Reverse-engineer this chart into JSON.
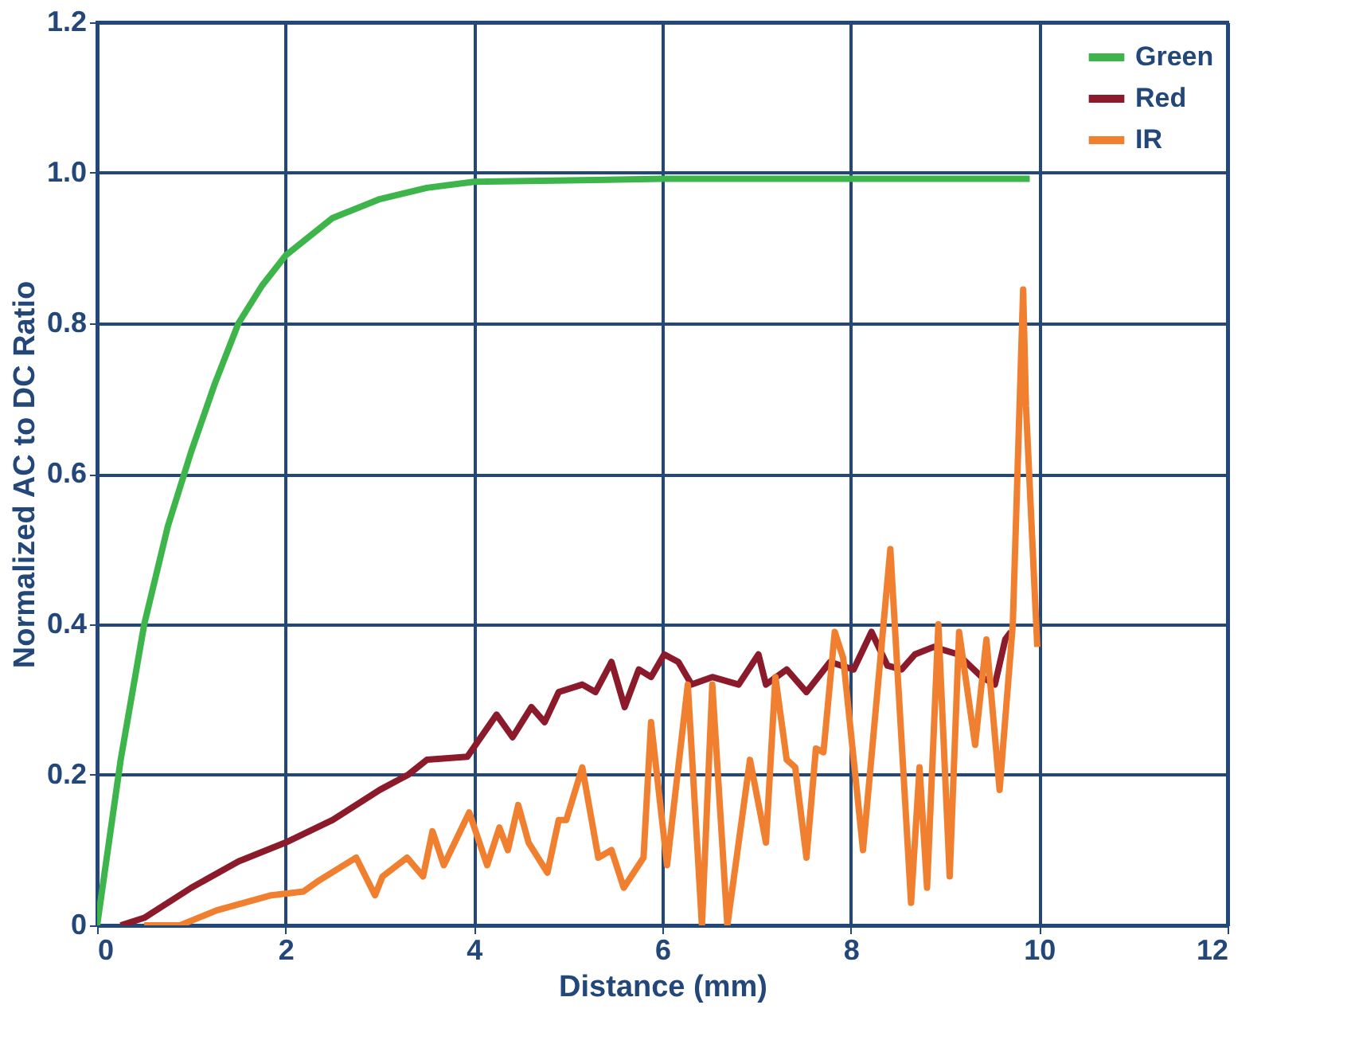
{
  "chart_data": {
    "type": "line",
    "xlabel": "Distance (mm)",
    "ylabel": "Normalized AC to DC Ratio",
    "xlim": [
      0,
      12
    ],
    "ylim": [
      0,
      1.2
    ],
    "xticks": [
      0,
      2,
      4,
      6,
      8,
      10,
      12
    ],
    "yticks": [
      {
        "value": 0,
        "label": "0"
      },
      0.2,
      0.4,
      0.6,
      0.8,
      {
        "value": 1,
        "label": "1.0"
      },
      1.2
    ],
    "grid": true,
    "legend": "top right",
    "line_style": "solid",
    "marker": "none",
    "series": [
      {
        "name": "Green",
        "color": "#3db54a",
        "x": [
          0,
          0.25,
          0.5,
          0.75,
          1,
          1.25,
          1.5,
          1.75,
          2,
          2.5,
          3,
          3.5,
          4,
          5,
          6,
          7,
          8,
          9,
          9.9
        ],
        "values": [
          0,
          0.22,
          0.4,
          0.53,
          0.63,
          0.72,
          0.8,
          0.85,
          0.89,
          0.94,
          0.965,
          0.98,
          0.988,
          0.99,
          0.992,
          0.992,
          0.992,
          0.992,
          0.992
        ]
      },
      {
        "name": "Red",
        "color": "#8b1a2b",
        "x": [
          0.25,
          0.5,
          1,
          1.5,
          2,
          2.5,
          3,
          3.3,
          3.5,
          3.93,
          4.24,
          4.41,
          4.61,
          4.75,
          4.9,
          5.15,
          5.29,
          5.46,
          5.6,
          5.75,
          5.88,
          6.02,
          6.17,
          6.31,
          6.53,
          6.81,
          7.02,
          7.1,
          7.32,
          7.53,
          7.78,
          8.03,
          8.22,
          8.39,
          8.54,
          8.68,
          8.88,
          9.14,
          9.39,
          9.53,
          9.64,
          9.7
        ],
        "values": [
          0,
          0.01,
          0.05,
          0.085,
          0.11,
          0.14,
          0.18,
          0.2,
          0.22,
          0.224,
          0.28,
          0.25,
          0.29,
          0.27,
          0.31,
          0.32,
          0.31,
          0.35,
          0.29,
          0.34,
          0.33,
          0.36,
          0.35,
          0.32,
          0.33,
          0.32,
          0.36,
          0.32,
          0.34,
          0.31,
          0.35,
          0.34,
          0.39,
          0.345,
          0.34,
          0.36,
          0.37,
          0.36,
          0.33,
          0.32,
          0.38,
          0.39
        ]
      },
      {
        "name": "IR",
        "color": "#f07f2f",
        "x": [
          0.5,
          0.88,
          1.27,
          1.56,
          1.85,
          2.19,
          2.36,
          2.75,
          2.95,
          3.03,
          3.29,
          3.46,
          3.56,
          3.68,
          3.95,
          4.14,
          4.27,
          4.36,
          4.47,
          4.58,
          4.78,
          4.9,
          4.98,
          5.15,
          5.32,
          5.46,
          5.59,
          5.8,
          5.88,
          6.05,
          6.27,
          6.42,
          6.53,
          6.69,
          6.93,
          7.1,
          7.2,
          7.32,
          7.41,
          7.53,
          7.63,
          7.71,
          7.83,
          7.92,
          8.13,
          8.42,
          8.64,
          8.73,
          8.81,
          8.93,
          9.05,
          9.15,
          9.32,
          9.44,
          9.58,
          9.72,
          9.83,
          9.86,
          9.98
        ],
        "values": [
          0,
          0.0,
          0.02,
          0.03,
          0.04,
          0.045,
          0.06,
          0.09,
          0.04,
          0.065,
          0.09,
          0.065,
          0.125,
          0.08,
          0.15,
          0.08,
          0.13,
          0.1,
          0.16,
          0.11,
          0.07,
          0.14,
          0.14,
          0.21,
          0.09,
          0.1,
          0.05,
          0.09,
          0.27,
          0.08,
          0.32,
          0.0,
          0.32,
          0.0,
          0.22,
          0.11,
          0.33,
          0.22,
          0.21,
          0.09,
          0.235,
          0.23,
          0.39,
          0.355,
          0.1,
          0.5,
          0.03,
          0.21,
          0.05,
          0.4,
          0.065,
          0.39,
          0.24,
          0.38,
          0.18,
          0.4,
          0.845,
          0.69,
          0.37
        ]
      }
    ]
  }
}
